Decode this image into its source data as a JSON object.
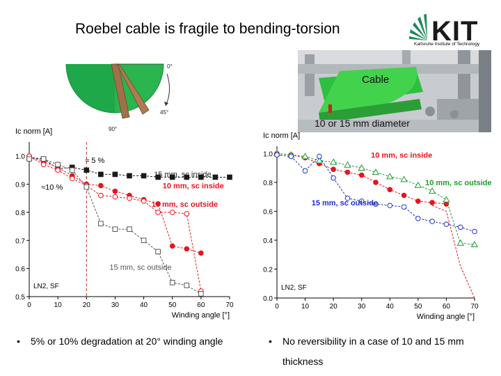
{
  "slide": {
    "title": "Roebel cable is fragile to bending-torsion",
    "logo_text": "KIT",
    "logo_subtitle": "Karlsruhe Institute of Technology",
    "sector_labels": {
      "zero": "0°",
      "fortyfive": "45°",
      "ninety": "90°"
    },
    "photo_labels": {
      "cable": "Cable",
      "diameter": "10 or 15 mm diameter"
    },
    "bullets": [
      {
        "marker": "•",
        "text": "5% or 10% degradation at 20° winding angle"
      },
      {
        "marker": "•",
        "text": "No reversibility in a case of 10 and 15 mm",
        "text2": "thickness"
      }
    ],
    "colors": {
      "red": "#e8141c",
      "black": "#1a1a1a",
      "gray": "#555555",
      "blue": "#1f2fd0",
      "green": "#1f9c2e",
      "green_photo": "#3fd14a"
    }
  },
  "chart_data": [
    {
      "type": "line",
      "ylabel": "Ic norm [A]",
      "xlabel": "Winding angle [°]",
      "xlim": [
        0,
        70
      ],
      "ylim": [
        0.5,
        1.05
      ],
      "xticks": [
        0,
        10,
        20,
        30,
        40,
        50,
        60,
        70
      ],
      "yticks": [
        0.5,
        0.6,
        0.7,
        0.8,
        0.9,
        1.0
      ],
      "xtick_labels": [
        "0",
        "10",
        "20",
        "30",
        "40",
        "50",
        "60",
        "70"
      ],
      "ytick_labels": [
        "0.5",
        "0.6",
        "0.7",
        "0.8",
        "0.9",
        "1.0"
      ],
      "vline_x": 20,
      "corner_label": "LN2, SF",
      "annotations": [
        "≈ 5 %",
        "≈10 %"
      ],
      "series": [
        {
          "name": "15 mm, sc inside",
          "color": "#1a1a1a",
          "marker": "square",
          "filled": true,
          "x": [
            0,
            5,
            10,
            15,
            20,
            25,
            30,
            35,
            40,
            45,
            50,
            55,
            60,
            65,
            70
          ],
          "y": [
            0.995,
            0.99,
            0.955,
            0.96,
            0.95,
            0.935,
            0.935,
            0.93,
            0.93,
            0.925,
            0.925,
            0.925,
            0.925,
            0.925,
            0.925
          ]
        },
        {
          "name": "10 mm, sc inside",
          "color": "#e8141c",
          "marker": "circle",
          "filled": true,
          "x": [
            0,
            5,
            10,
            15,
            20,
            25,
            30,
            35,
            40,
            45,
            50,
            55,
            60
          ],
          "y": [
            1.0,
            0.98,
            0.96,
            0.93,
            0.9,
            0.895,
            0.875,
            0.86,
            0.845,
            0.83,
            0.68,
            0.67,
            0.655
          ]
        },
        {
          "name": "10 mm, sc outside",
          "color": "#e8141c",
          "marker": "circle",
          "filled": false,
          "x": [
            0,
            5,
            10,
            15,
            20,
            25,
            30,
            35,
            40,
            45,
            50,
            55,
            60
          ],
          "y": [
            1.0,
            0.97,
            0.95,
            0.92,
            0.895,
            0.86,
            0.855,
            0.85,
            0.84,
            0.8,
            0.8,
            0.795,
            0.52
          ]
        },
        {
          "name": "15 mm, sc outside",
          "color": "#555555",
          "marker": "square",
          "filled": false,
          "x": [
            0,
            5,
            10,
            15,
            20,
            25,
            30,
            35,
            40,
            45,
            50,
            55,
            60
          ],
          "y": [
            0.99,
            0.99,
            0.97,
            0.95,
            0.89,
            0.76,
            0.74,
            0.74,
            0.7,
            0.66,
            0.55,
            0.54,
            0.51
          ]
        }
      ]
    },
    {
      "type": "line",
      "ylabel": "Ic norm [A]",
      "xlabel": "Winding angle [°]",
      "xlim": [
        0,
        70
      ],
      "ylim": [
        0,
        1.05
      ],
      "xticks": [
        0,
        10,
        20,
        30,
        40,
        50,
        60,
        70
      ],
      "yticks": [
        0,
        0.2,
        0.4,
        0.6,
        0.8,
        1.0
      ],
      "xtick_labels": [
        "0",
        "10",
        "20",
        "30",
        "40",
        "50",
        "60",
        "70"
      ],
      "ytick_labels": [
        "0.0",
        "0.2",
        "0.4",
        "0.6",
        "0.8",
        "1.0"
      ],
      "corner_label": "LN2, SF",
      "series": [
        {
          "name": "10 mm, sc inside",
          "color": "#e8141c",
          "marker": "circle",
          "filled": true,
          "x": [
            0,
            5,
            10,
            15,
            20,
            25,
            30,
            35,
            40,
            45,
            50,
            55,
            60
          ],
          "y": [
            1.0,
            0.99,
            0.97,
            0.93,
            0.89,
            0.87,
            0.85,
            0.8,
            0.75,
            0.71,
            0.67,
            0.66,
            0.65
          ]
        },
        {
          "name": "10 mm, sc outside",
          "color": "#1f9c2e",
          "marker": "triangle",
          "filled": false,
          "x": [
            0,
            5,
            10,
            15,
            20,
            25,
            30,
            35,
            40,
            45,
            50,
            55,
            60,
            65,
            70
          ],
          "y": [
            1.0,
            0.99,
            0.98,
            0.95,
            0.94,
            0.92,
            0.9,
            0.87,
            0.84,
            0.82,
            0.78,
            0.74,
            0.68,
            0.38,
            0.37
          ]
        },
        {
          "name": "15 mm, sc outside",
          "color": "#1f2fd0",
          "marker": "circle",
          "filled": false,
          "x": [
            0,
            5,
            10,
            15,
            20,
            25,
            30,
            35,
            40,
            45,
            50,
            55,
            60,
            65,
            70
          ],
          "y": [
            0.99,
            0.98,
            0.88,
            0.98,
            0.83,
            0.69,
            0.67,
            0.65,
            0.64,
            0.63,
            0.55,
            0.53,
            0.51,
            0.49,
            0.46
          ]
        },
        {
          "name": "",
          "color": "#e8141c",
          "marker": "none",
          "filled": false,
          "x": [
            55,
            60,
            65,
            70
          ],
          "y": [
            0.64,
            0.6,
            0.22,
            0.0
          ]
        }
      ]
    }
  ]
}
